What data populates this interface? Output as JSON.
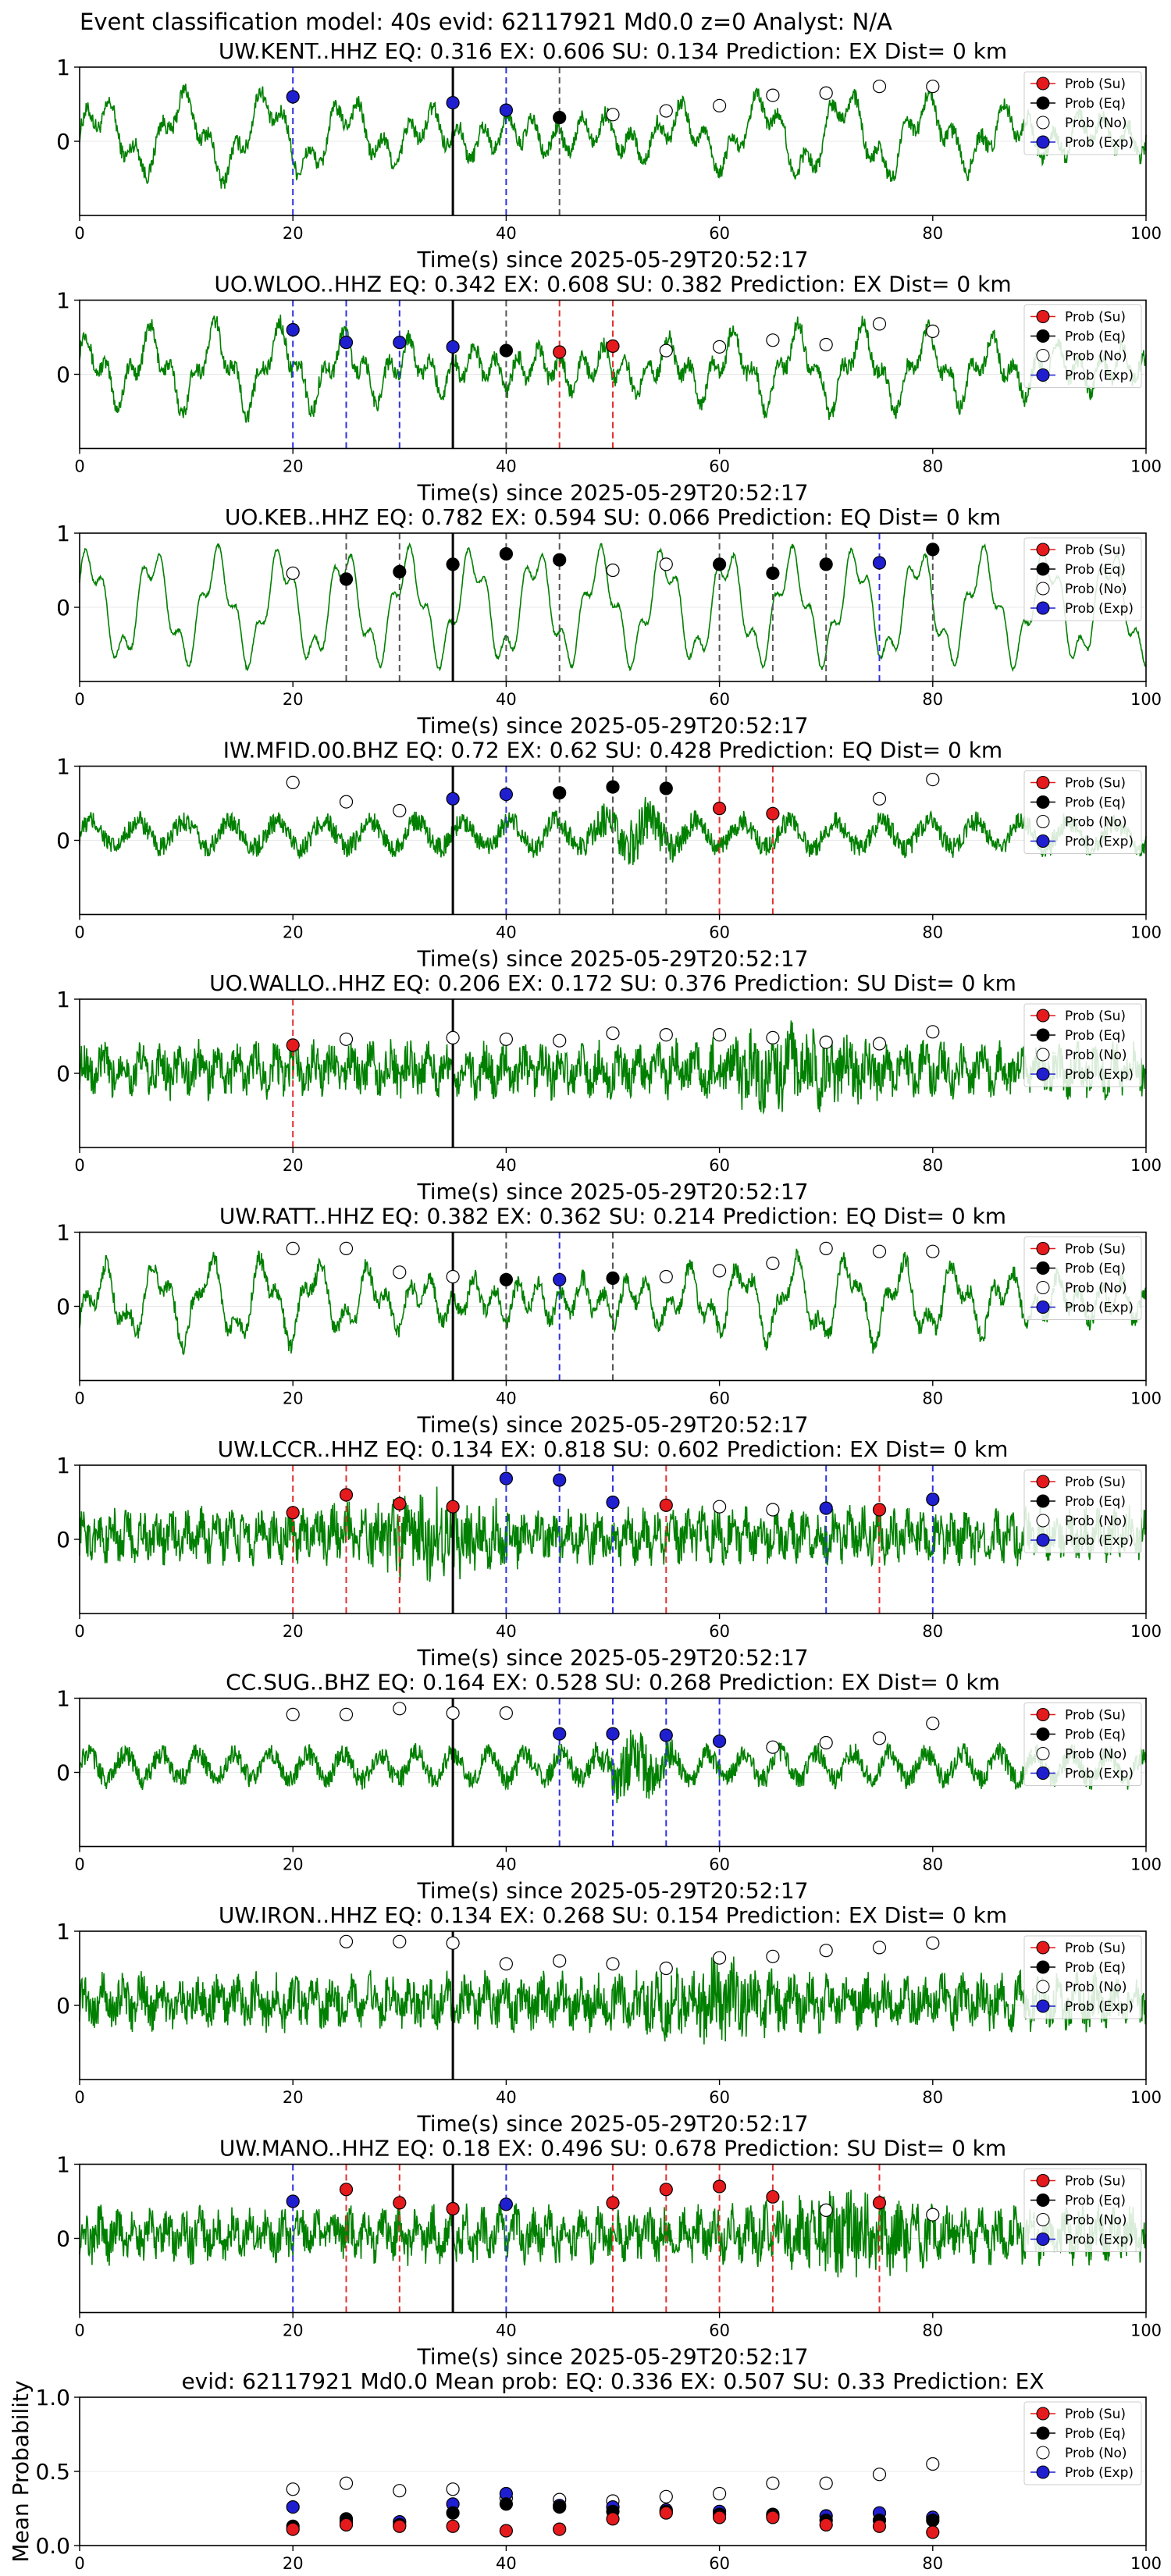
{
  "suptitle": "Event classification model: 40s evid: 62117921 Md0.0 z=0 Analyst: N/A",
  "legend_labels": [
    "Prob (Su)",
    "Prob (Eq)",
    "Prob (No)",
    "Prob (Exp)"
  ],
  "colors": {
    "su": "#e41a1c",
    "eq": "#000000",
    "no": "#ffffff",
    "exp": "#1f1fd0",
    "trace": "#008000",
    "su_line": "#e03030",
    "eq_line": "#555555",
    "exp_line": "#3030e0",
    "arrival": "#000000"
  },
  "chart_data": [
    {
      "type": "scatter",
      "title": "UW.KENT..HHZ   EQ: 0.316  EX: 0.606  SU: 0.134   Prediction: EX    Dist= 0 km",
      "xlabel": "Time(s) since 2025-05-29T20:52:17",
      "ylabel": "",
      "xlim": [
        0,
        100
      ],
      "ylim": [
        -1,
        1
      ],
      "x_ticks": [
        "0",
        "20",
        "40",
        "60",
        "80",
        "100"
      ],
      "y_ticks": [
        "0",
        "1"
      ],
      "arrival": 35,
      "trace_style": "mixed",
      "points": [
        {
          "x": 20,
          "y": 0.6,
          "cls": "exp"
        },
        {
          "x": 35,
          "y": 0.52,
          "cls": "exp"
        },
        {
          "x": 40,
          "y": 0.42,
          "cls": "exp"
        },
        {
          "x": 45,
          "y": 0.32,
          "cls": "eq"
        },
        {
          "x": 50,
          "y": 0.36,
          "cls": "no"
        },
        {
          "x": 55,
          "y": 0.41,
          "cls": "no"
        },
        {
          "x": 60,
          "y": 0.48,
          "cls": "no"
        },
        {
          "x": 65,
          "y": 0.62,
          "cls": "no"
        },
        {
          "x": 70,
          "y": 0.65,
          "cls": "no"
        },
        {
          "x": 75,
          "y": 0.74,
          "cls": "no"
        },
        {
          "x": 80,
          "y": 0.74,
          "cls": "no"
        }
      ]
    },
    {
      "type": "scatter",
      "title": "UO.WLOO..HHZ   EQ: 0.342  EX: 0.608  SU: 0.382   Prediction: EX    Dist= 0 km",
      "xlabel": "Time(s) since 2025-05-29T20:52:17",
      "ylabel": "",
      "xlim": [
        0,
        100
      ],
      "ylim": [
        -1,
        1
      ],
      "x_ticks": [
        "0",
        "20",
        "40",
        "60",
        "80",
        "100"
      ],
      "y_ticks": [
        "0",
        "1"
      ],
      "arrival": 35,
      "trace_style": "mixed",
      "points": [
        {
          "x": 20,
          "y": 0.6,
          "cls": "exp"
        },
        {
          "x": 25,
          "y": 0.43,
          "cls": "exp"
        },
        {
          "x": 30,
          "y": 0.43,
          "cls": "exp"
        },
        {
          "x": 35,
          "y": 0.37,
          "cls": "exp"
        },
        {
          "x": 40,
          "y": 0.32,
          "cls": "eq"
        },
        {
          "x": 45,
          "y": 0.3,
          "cls": "su"
        },
        {
          "x": 50,
          "y": 0.38,
          "cls": "su"
        },
        {
          "x": 55,
          "y": 0.32,
          "cls": "no"
        },
        {
          "x": 60,
          "y": 0.37,
          "cls": "no"
        },
        {
          "x": 65,
          "y": 0.46,
          "cls": "no"
        },
        {
          "x": 70,
          "y": 0.4,
          "cls": "no"
        },
        {
          "x": 75,
          "y": 0.68,
          "cls": "no"
        },
        {
          "x": 80,
          "y": 0.58,
          "cls": "no"
        }
      ]
    },
    {
      "type": "scatter",
      "title": "UO.KEB..HHZ   EQ: 0.782  EX: 0.594  SU: 0.066   Prediction: EQ    Dist= 0 km",
      "xlabel": "Time(s) since 2025-05-29T20:52:17",
      "ylabel": "",
      "xlim": [
        0,
        100
      ],
      "ylim": [
        -1,
        1
      ],
      "x_ticks": [
        "0",
        "20",
        "40",
        "60",
        "80",
        "100"
      ],
      "y_ticks": [
        "0",
        "1"
      ],
      "arrival": 35,
      "trace_style": "wave",
      "points": [
        {
          "x": 20,
          "y": 0.46,
          "cls": "no"
        },
        {
          "x": 25,
          "y": 0.38,
          "cls": "eq"
        },
        {
          "x": 30,
          "y": 0.48,
          "cls": "eq"
        },
        {
          "x": 35,
          "y": 0.58,
          "cls": "eq"
        },
        {
          "x": 40,
          "y": 0.72,
          "cls": "eq"
        },
        {
          "x": 45,
          "y": 0.64,
          "cls": "eq"
        },
        {
          "x": 50,
          "y": 0.5,
          "cls": "no"
        },
        {
          "x": 55,
          "y": 0.58,
          "cls": "no"
        },
        {
          "x": 60,
          "y": 0.58,
          "cls": "eq"
        },
        {
          "x": 65,
          "y": 0.46,
          "cls": "eq"
        },
        {
          "x": 70,
          "y": 0.58,
          "cls": "eq"
        },
        {
          "x": 75,
          "y": 0.6,
          "cls": "exp"
        },
        {
          "x": 80,
          "y": 0.78,
          "cls": "eq"
        }
      ]
    },
    {
      "type": "scatter",
      "title": "IW.MFID.00.BHZ   EQ: 0.72  EX: 0.62  SU: 0.428   Prediction: EQ    Dist= 0 km",
      "xlabel": "Time(s) since 2025-05-29T20:52:17",
      "ylabel": "",
      "xlim": [
        0,
        100
      ],
      "ylim": [
        -1,
        1
      ],
      "x_ticks": [
        "0",
        "20",
        "40",
        "60",
        "80",
        "100"
      ],
      "y_ticks": [
        "0",
        "1"
      ],
      "arrival": 35,
      "trace_style": "lownoise",
      "points": [
        {
          "x": 20,
          "y": 0.78,
          "cls": "no"
        },
        {
          "x": 25,
          "y": 0.52,
          "cls": "no"
        },
        {
          "x": 30,
          "y": 0.4,
          "cls": "no"
        },
        {
          "x": 35,
          "y": 0.56,
          "cls": "exp"
        },
        {
          "x": 40,
          "y": 0.62,
          "cls": "exp"
        },
        {
          "x": 45,
          "y": 0.64,
          "cls": "eq"
        },
        {
          "x": 50,
          "y": 0.72,
          "cls": "eq"
        },
        {
          "x": 55,
          "y": 0.7,
          "cls": "eq"
        },
        {
          "x": 60,
          "y": 0.43,
          "cls": "su"
        },
        {
          "x": 65,
          "y": 0.36,
          "cls": "su"
        },
        {
          "x": 75,
          "y": 0.56,
          "cls": "no"
        },
        {
          "x": 80,
          "y": 0.82,
          "cls": "no"
        }
      ]
    },
    {
      "type": "scatter",
      "title": "UO.WALLO..HHZ   EQ: 0.206  EX: 0.172  SU: 0.376   Prediction: SU    Dist= 0 km",
      "xlabel": "Time(s) since 2025-05-29T20:52:17",
      "ylabel": "",
      "xlim": [
        0,
        100
      ],
      "ylim": [
        -1,
        1
      ],
      "x_ticks": [
        "0",
        "20",
        "40",
        "60",
        "80",
        "100"
      ],
      "y_ticks": [
        "0",
        "1"
      ],
      "arrival": 35,
      "trace_style": "noise",
      "points": [
        {
          "x": 20,
          "y": 0.38,
          "cls": "su"
        },
        {
          "x": 25,
          "y": 0.46,
          "cls": "no"
        },
        {
          "x": 35,
          "y": 0.48,
          "cls": "no"
        },
        {
          "x": 40,
          "y": 0.46,
          "cls": "no"
        },
        {
          "x": 45,
          "y": 0.44,
          "cls": "no"
        },
        {
          "x": 50,
          "y": 0.54,
          "cls": "no"
        },
        {
          "x": 55,
          "y": 0.52,
          "cls": "no"
        },
        {
          "x": 60,
          "y": 0.52,
          "cls": "no"
        },
        {
          "x": 65,
          "y": 0.48,
          "cls": "no"
        },
        {
          "x": 70,
          "y": 0.42,
          "cls": "no"
        },
        {
          "x": 75,
          "y": 0.4,
          "cls": "no"
        },
        {
          "x": 80,
          "y": 0.56,
          "cls": "no"
        }
      ]
    },
    {
      "type": "scatter",
      "title": "UW.RATT..HHZ   EQ: 0.382  EX: 0.362  SU: 0.214   Prediction: EQ    Dist= 0 km",
      "xlabel": "Time(s) since 2025-05-29T20:52:17",
      "ylabel": "",
      "xlim": [
        0,
        100
      ],
      "ylim": [
        -1,
        1
      ],
      "x_ticks": [
        "0",
        "20",
        "40",
        "60",
        "80",
        "100"
      ],
      "y_ticks": [
        "0",
        "1"
      ],
      "arrival": 35,
      "trace_style": "mixed",
      "points": [
        {
          "x": 20,
          "y": 0.78,
          "cls": "no"
        },
        {
          "x": 25,
          "y": 0.78,
          "cls": "no"
        },
        {
          "x": 30,
          "y": 0.46,
          "cls": "no"
        },
        {
          "x": 35,
          "y": 0.4,
          "cls": "no"
        },
        {
          "x": 40,
          "y": 0.36,
          "cls": "eq"
        },
        {
          "x": 45,
          "y": 0.36,
          "cls": "exp"
        },
        {
          "x": 50,
          "y": 0.38,
          "cls": "eq"
        },
        {
          "x": 55,
          "y": 0.4,
          "cls": "no"
        },
        {
          "x": 60,
          "y": 0.48,
          "cls": "no"
        },
        {
          "x": 65,
          "y": 0.58,
          "cls": "no"
        },
        {
          "x": 70,
          "y": 0.78,
          "cls": "no"
        },
        {
          "x": 75,
          "y": 0.74,
          "cls": "no"
        },
        {
          "x": 80,
          "y": 0.74,
          "cls": "no"
        }
      ]
    },
    {
      "type": "scatter",
      "title": "UW.LCCR..HHZ   EQ: 0.134  EX: 0.818  SU: 0.602   Prediction: EX    Dist= 0 km",
      "xlabel": "Time(s) since 2025-05-29T20:52:17",
      "ylabel": "",
      "xlim": [
        0,
        100
      ],
      "ylim": [
        -1,
        1
      ],
      "x_ticks": [
        "0",
        "20",
        "40",
        "60",
        "80",
        "100"
      ],
      "y_ticks": [
        "0",
        "1"
      ],
      "arrival": 35,
      "trace_style": "noise",
      "points": [
        {
          "x": 20,
          "y": 0.36,
          "cls": "su"
        },
        {
          "x": 25,
          "y": 0.6,
          "cls": "su"
        },
        {
          "x": 30,
          "y": 0.48,
          "cls": "su"
        },
        {
          "x": 35,
          "y": 0.44,
          "cls": "su"
        },
        {
          "x": 40,
          "y": 0.82,
          "cls": "exp"
        },
        {
          "x": 45,
          "y": 0.8,
          "cls": "exp"
        },
        {
          "x": 50,
          "y": 0.5,
          "cls": "exp"
        },
        {
          "x": 55,
          "y": 0.46,
          "cls": "su"
        },
        {
          "x": 60,
          "y": 0.44,
          "cls": "no"
        },
        {
          "x": 65,
          "y": 0.4,
          "cls": "no"
        },
        {
          "x": 70,
          "y": 0.42,
          "cls": "exp"
        },
        {
          "x": 75,
          "y": 0.4,
          "cls": "su"
        },
        {
          "x": 80,
          "y": 0.54,
          "cls": "exp"
        }
      ]
    },
    {
      "type": "scatter",
      "title": "CC.SUG..BHZ   EQ: 0.164  EX: 0.528  SU: 0.268   Prediction: EX    Dist= 0 km",
      "xlabel": "Time(s) since 2025-05-29T20:52:17",
      "ylabel": "",
      "xlim": [
        0,
        100
      ],
      "ylim": [
        -1,
        1
      ],
      "x_ticks": [
        "0",
        "20",
        "40",
        "60",
        "80",
        "100"
      ],
      "y_ticks": [
        "0",
        "1"
      ],
      "arrival": 35,
      "trace_style": "lownoise",
      "points": [
        {
          "x": 20,
          "y": 0.78,
          "cls": "no"
        },
        {
          "x": 25,
          "y": 0.78,
          "cls": "no"
        },
        {
          "x": 30,
          "y": 0.86,
          "cls": "no"
        },
        {
          "x": 35,
          "y": 0.8,
          "cls": "no"
        },
        {
          "x": 40,
          "y": 0.8,
          "cls": "no"
        },
        {
          "x": 45,
          "y": 0.52,
          "cls": "exp"
        },
        {
          "x": 50,
          "y": 0.52,
          "cls": "exp"
        },
        {
          "x": 55,
          "y": 0.5,
          "cls": "exp"
        },
        {
          "x": 60,
          "y": 0.42,
          "cls": "exp"
        },
        {
          "x": 65,
          "y": 0.34,
          "cls": "no"
        },
        {
          "x": 70,
          "y": 0.4,
          "cls": "no"
        },
        {
          "x": 75,
          "y": 0.46,
          "cls": "no"
        },
        {
          "x": 80,
          "y": 0.66,
          "cls": "no"
        }
      ]
    },
    {
      "type": "scatter",
      "title": "UW.IRON..HHZ   EQ: 0.134  EX: 0.268  SU: 0.154   Prediction: EX    Dist= 0 km",
      "xlabel": "Time(s) since 2025-05-29T20:52:17",
      "ylabel": "",
      "xlim": [
        0,
        100
      ],
      "ylim": [
        -1,
        1
      ],
      "x_ticks": [
        "0",
        "20",
        "40",
        "60",
        "80",
        "100"
      ],
      "y_ticks": [
        "0",
        "1"
      ],
      "arrival": 35,
      "trace_style": "noise",
      "points": [
        {
          "x": 25,
          "y": 0.86,
          "cls": "no"
        },
        {
          "x": 30,
          "y": 0.86,
          "cls": "no"
        },
        {
          "x": 35,
          "y": 0.84,
          "cls": "no"
        },
        {
          "x": 40,
          "y": 0.56,
          "cls": "no"
        },
        {
          "x": 45,
          "y": 0.6,
          "cls": "no"
        },
        {
          "x": 50,
          "y": 0.56,
          "cls": "no"
        },
        {
          "x": 55,
          "y": 0.5,
          "cls": "no"
        },
        {
          "x": 60,
          "y": 0.64,
          "cls": "no"
        },
        {
          "x": 65,
          "y": 0.66,
          "cls": "no"
        },
        {
          "x": 70,
          "y": 0.74,
          "cls": "no"
        },
        {
          "x": 75,
          "y": 0.78,
          "cls": "no"
        },
        {
          "x": 80,
          "y": 0.84,
          "cls": "no"
        }
      ]
    },
    {
      "type": "scatter",
      "title": "UW.MANO..HHZ   EQ: 0.18  EX: 0.496  SU: 0.678   Prediction: SU    Dist= 0 km",
      "xlabel": "Time(s) since 2025-05-29T20:52:17",
      "ylabel": "",
      "xlim": [
        0,
        100
      ],
      "ylim": [
        -1,
        1
      ],
      "x_ticks": [
        "0",
        "20",
        "40",
        "60",
        "80",
        "100"
      ],
      "y_ticks": [
        "0",
        "1"
      ],
      "arrival": 35,
      "trace_style": "noise",
      "points": [
        {
          "x": 20,
          "y": 0.5,
          "cls": "exp"
        },
        {
          "x": 25,
          "y": 0.66,
          "cls": "su"
        },
        {
          "x": 30,
          "y": 0.48,
          "cls": "su"
        },
        {
          "x": 35,
          "y": 0.4,
          "cls": "su"
        },
        {
          "x": 40,
          "y": 0.46,
          "cls": "exp"
        },
        {
          "x": 50,
          "y": 0.48,
          "cls": "su"
        },
        {
          "x": 55,
          "y": 0.66,
          "cls": "su"
        },
        {
          "x": 60,
          "y": 0.7,
          "cls": "su"
        },
        {
          "x": 65,
          "y": 0.56,
          "cls": "su"
        },
        {
          "x": 70,
          "y": 0.38,
          "cls": "no"
        },
        {
          "x": 75,
          "y": 0.48,
          "cls": "su"
        },
        {
          "x": 80,
          "y": 0.32,
          "cls": "no"
        }
      ]
    },
    {
      "type": "scatter",
      "title": "evid: 62117921  Md0.0   Mean prob:    EQ: 0.336  EX: 0.507  SU: 0.33   Prediction: EX",
      "xlabel": "",
      "ylabel": "Mean Probability",
      "xlim": [
        0,
        100
      ],
      "ylim": [
        0,
        1
      ],
      "x_ticks": [
        "0",
        "20",
        "40",
        "60",
        "80",
        "100"
      ],
      "y_ticks": [
        "0.0",
        "0.5",
        "1.0"
      ],
      "series": [
        {
          "cls": "no",
          "x": [
            20,
            25,
            30,
            35,
            40,
            45,
            50,
            55,
            60,
            65,
            70,
            75,
            80
          ],
          "y": [
            0.38,
            0.42,
            0.37,
            0.38,
            0.32,
            0.31,
            0.3,
            0.33,
            0.35,
            0.42,
            0.42,
            0.48,
            0.55
          ]
        },
        {
          "cls": "exp",
          "x": [
            20,
            25,
            30,
            35,
            40,
            45,
            50,
            55,
            60,
            65,
            70,
            75,
            80
          ],
          "y": [
            0.26,
            0.16,
            0.16,
            0.28,
            0.35,
            0.27,
            0.26,
            0.24,
            0.23,
            0.2,
            0.2,
            0.22,
            0.19
          ]
        },
        {
          "cls": "eq",
          "x": [
            20,
            25,
            30,
            35,
            40,
            45,
            50,
            55,
            60,
            65,
            70,
            75,
            80
          ],
          "y": [
            0.13,
            0.18,
            0.14,
            0.22,
            0.28,
            0.26,
            0.23,
            0.23,
            0.21,
            0.21,
            0.17,
            0.17,
            0.17
          ]
        },
        {
          "cls": "su",
          "x": [
            20,
            25,
            30,
            35,
            40,
            45,
            50,
            55,
            60,
            65,
            70,
            75,
            80
          ],
          "y": [
            0.11,
            0.14,
            0.13,
            0.13,
            0.1,
            0.11,
            0.18,
            0.22,
            0.19,
            0.19,
            0.14,
            0.13,
            0.09
          ]
        }
      ]
    }
  ]
}
